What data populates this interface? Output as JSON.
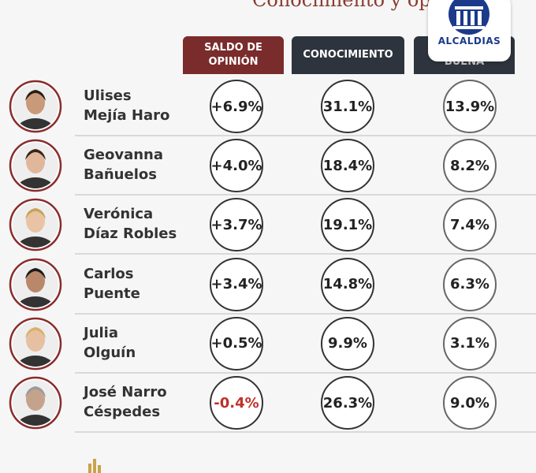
{
  "header": {
    "title": "Conocimiento y op",
    "logo": "ALCALDIAS"
  },
  "columns": [
    "SALDO DE OPINIÓN",
    "CONOCIMIENTO",
    "BUENA"
  ],
  "rows": [
    {
      "name": [
        "Ulises",
        "Mejía Haro"
      ],
      "values": [
        "+6.9%",
        "31.1%",
        "13.9%"
      ]
    },
    {
      "name": [
        "Geovanna",
        "Bañuelos"
      ],
      "values": [
        "+4.0%",
        "18.4%",
        "8.2%"
      ]
    },
    {
      "name": [
        "Verónica",
        "Díaz Robles"
      ],
      "values": [
        "+3.7%",
        "19.1%",
        "7.4%"
      ]
    },
    {
      "name": [
        "Carlos",
        "Puente"
      ],
      "values": [
        "+3.4%",
        "14.8%",
        "6.3%"
      ]
    },
    {
      "name": [
        "Julia",
        "Olguín"
      ],
      "values": [
        "+0.5%",
        "9.9%",
        "3.1%"
      ]
    },
    {
      "name": [
        "José Narro",
        "Céspedes"
      ],
      "values": [
        "-0.4%",
        "26.3%",
        "9.0%"
      ]
    }
  ]
}
